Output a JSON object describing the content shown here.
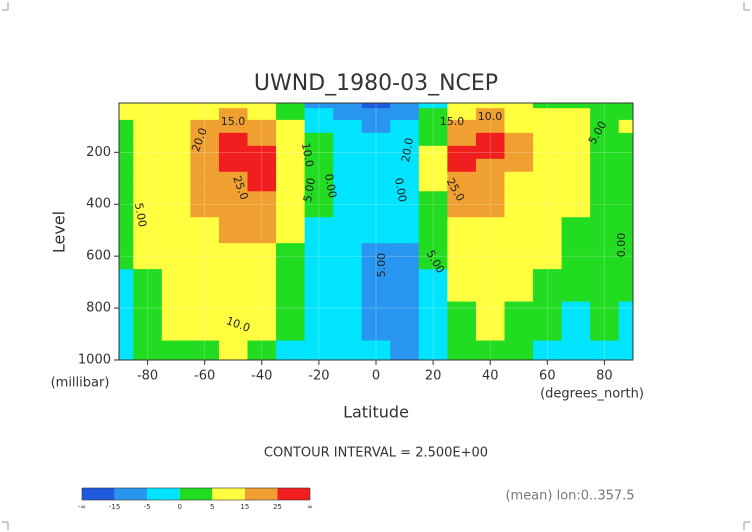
{
  "chart_data": {
    "type": "contour",
    "title": "UWND_1980-03_NCEP",
    "subtitle": "CONTOUR INTERVAL = 2.500E+00",
    "note": "(mean) lon:0..357.5",
    "x_label": "Latitude",
    "x_unit": "(degrees_north)",
    "y_label": "Level",
    "y_unit": "(millibar)",
    "x": [
      -90,
      -80,
      -70,
      -60,
      -50,
      -40,
      -30,
      -20,
      -10,
      0,
      10,
      20,
      30,
      40,
      50,
      60,
      70,
      80,
      90
    ],
    "y": [
      10,
      50,
      100,
      150,
      200,
      250,
      300,
      400,
      500,
      600,
      700,
      850,
      1000
    ],
    "z": [
      [
        8,
        10,
        12,
        14,
        12,
        8,
        3,
        -5,
        -12,
        -16,
        -10,
        -3,
        8,
        10,
        8,
        5,
        3,
        2,
        2
      ],
      [
        6,
        9,
        12,
        15,
        16,
        12,
        5,
        -2,
        -8,
        -10,
        -6,
        2,
        12,
        16,
        12,
        8,
        6,
        4,
        4
      ],
      [
        5,
        9,
        13,
        17,
        22,
        18,
        8,
        0,
        -4,
        -5,
        -3,
        3,
        18,
        20,
        15,
        10,
        7,
        5,
        6
      ],
      [
        5,
        9,
        14,
        19,
        26,
        24,
        10,
        1,
        -2,
        -3,
        -2,
        5,
        24,
        27,
        18,
        11,
        7,
        5,
        5
      ],
      [
        5,
        9,
        14,
        20,
        27,
        27,
        11,
        2,
        -1,
        -2,
        -1,
        6,
        28,
        27,
        18,
        11,
        7,
        5,
        5
      ],
      [
        5,
        9,
        14,
        20,
        26,
        27,
        11,
        2,
        -1,
        -2,
        -1,
        6,
        27,
        24,
        17,
        10,
        7,
        5,
        5
      ],
      [
        4,
        9,
        13,
        19,
        24,
        26,
        10,
        2,
        -1,
        -2,
        -1,
        6,
        25,
        21,
        15,
        9,
        7,
        5,
        4
      ],
      [
        3,
        8,
        12,
        17,
        20,
        20,
        8,
        1,
        -1,
        -2,
        -2,
        5,
        18,
        16,
        12,
        8,
        6,
        5,
        4
      ],
      [
        2,
        7,
        11,
        15,
        16,
        16,
        6,
        0,
        -2,
        -4,
        -4,
        3,
        13,
        13,
        10,
        7,
        5,
        4,
        3
      ],
      [
        1,
        6,
        10,
        13,
        14,
        13,
        5,
        -1,
        -3,
        -6,
        -6,
        1,
        10,
        10,
        8,
        6,
        4,
        3,
        2
      ],
      [
        0,
        5,
        8,
        11,
        12,
        11,
        3,
        -2,
        -3,
        -6,
        -6,
        0,
        8,
        8,
        7,
        5,
        3,
        2,
        1
      ],
      [
        -1,
        3,
        6,
        9,
        10,
        8,
        1,
        -3,
        -3,
        -6,
        -6,
        -1,
        5,
        6,
        5,
        2,
        0,
        1,
        0
      ],
      [
        -1,
        1,
        3,
        5,
        6,
        5,
        -1,
        -3,
        -3,
        -4,
        -6,
        -2,
        2,
        4,
        3,
        0,
        -1,
        0,
        -1
      ]
    ],
    "xlim": [
      -90,
      90
    ],
    "xticks": [
      -80,
      -60,
      -40,
      -20,
      0,
      20,
      40,
      60,
      80
    ],
    "ylim": [
      1000,
      10
    ],
    "yticks": [
      200,
      400,
      600,
      800,
      1000
    ],
    "grid": true,
    "levels": [
      {
        "value": null,
        "label": "-∞"
      },
      -15,
      -5,
      0,
      5,
      15,
      25,
      {
        "value": null,
        "label": "∞"
      }
    ],
    "colors": [
      "#1e5adc",
      "#2896f0",
      "#00e4ff",
      "#22dc22",
      "#ffff40",
      "#f0a030",
      "#f01e1e"
    ],
    "contour_labels": [
      "15.0",
      "20.0",
      "25.0",
      "10.0",
      "5.00",
      "0.00",
      "5.00",
      "10.0",
      "15.0",
      "10.0",
      "20.0",
      "25.0",
      "0.00",
      "5.00",
      "5.00",
      "5.00",
      "0.00"
    ]
  }
}
